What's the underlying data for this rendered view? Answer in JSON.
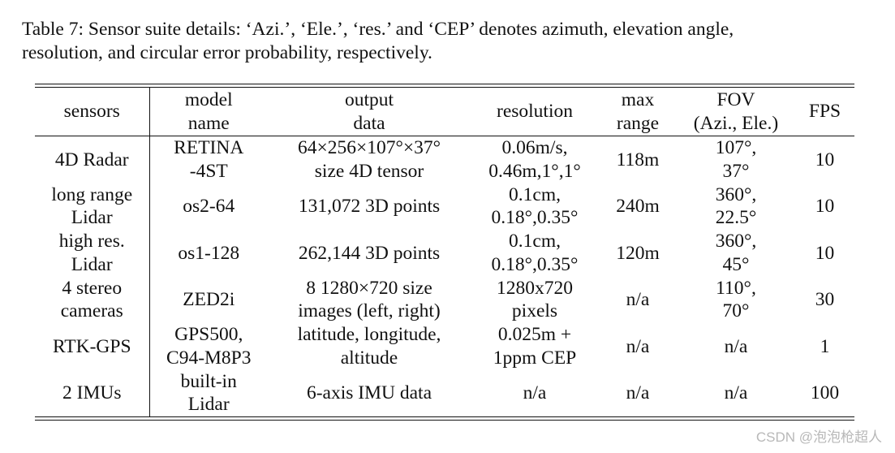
{
  "caption": {
    "line1": "Table 7: Sensor suite details: ‘Azi.’, ‘Ele.’, ‘res.’  and ‘CEP’ denotes azimuth, elevation angle,",
    "line2": "resolution, and circular error probability, respectively."
  },
  "table": {
    "headers": [
      [
        "sensors"
      ],
      [
        "model",
        "name"
      ],
      [
        "output",
        "data"
      ],
      [
        "resolution"
      ],
      [
        "max",
        "range"
      ],
      [
        "FOV",
        "(Azi., Ele.)"
      ],
      [
        "FPS"
      ]
    ],
    "rows": [
      [
        [
          "4D Radar"
        ],
        [
          "RETINA",
          "-4ST"
        ],
        [
          "64×256×107°×37°",
          "size 4D tensor"
        ],
        [
          "0.06m/s,",
          "0.46m,1°,1°"
        ],
        [
          "118m"
        ],
        [
          "107°,",
          "37°"
        ],
        [
          "10"
        ]
      ],
      [
        [
          "long range",
          "Lidar"
        ],
        [
          "os2-64"
        ],
        [
          "131,072 3D points"
        ],
        [
          "0.1cm,",
          "0.18°,0.35°"
        ],
        [
          "240m"
        ],
        [
          "360°,",
          "22.5°"
        ],
        [
          "10"
        ]
      ],
      [
        [
          "high res.",
          "Lidar"
        ],
        [
          "os1-128"
        ],
        [
          "262,144 3D points"
        ],
        [
          "0.1cm,",
          "0.18°,0.35°"
        ],
        [
          "120m"
        ],
        [
          "360°,",
          "45°"
        ],
        [
          "10"
        ]
      ],
      [
        [
          "4 stereo",
          "cameras"
        ],
        [
          "ZED2i"
        ],
        [
          "8 1280×720 size",
          "images (left, right)"
        ],
        [
          "1280x720",
          "pixels"
        ],
        [
          "n/a"
        ],
        [
          "110°,",
          "70°"
        ],
        [
          "30"
        ]
      ],
      [
        [
          "RTK-GPS"
        ],
        [
          "GPS500,",
          "C94-M8P3"
        ],
        [
          "latitude, longitude,",
          "altitude"
        ],
        [
          "0.025m +",
          "1ppm CEP"
        ],
        [
          "n/a"
        ],
        [
          "n/a"
        ],
        [
          "1"
        ]
      ],
      [
        [
          "2 IMUs"
        ],
        [
          "built-in",
          "Lidar"
        ],
        [
          "6-axis IMU data"
        ],
        [
          "n/a"
        ],
        [
          "n/a"
        ],
        [
          "n/a"
        ],
        [
          "100"
        ]
      ]
    ]
  },
  "watermark": "CSDN @泡泡枪超人"
}
